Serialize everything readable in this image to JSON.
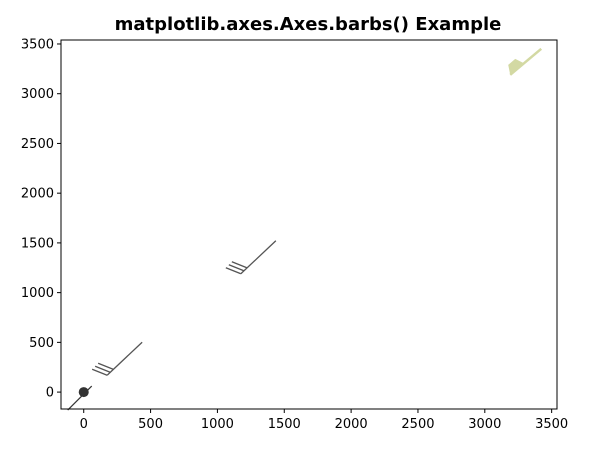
{
  "chart_data": {
    "type": "barbs",
    "title": "matplotlib.axes.Axes.barbs() Example",
    "xlabel": "",
    "ylabel": "",
    "xlim": [
      -170,
      3540
    ],
    "ylim": [
      -170,
      3540
    ],
    "xticks": [
      0,
      500,
      1000,
      1500,
      2000,
      2500,
      3000,
      3500
    ],
    "yticks": [
      0,
      500,
      1000,
      1500,
      2000,
      2500,
      3000,
      3500
    ],
    "grid": false,
    "barbs": [
      {
        "x": 0,
        "y": 0,
        "style": "calm-circle",
        "color": "#333333"
      },
      {
        "x": 250,
        "y": 230,
        "style": "three-full-barbs",
        "color": "#555555"
      },
      {
        "x": 1250,
        "y": 1250,
        "style": "three-full-barbs",
        "color": "#555555"
      },
      {
        "x": 3250,
        "y": 3250,
        "style": "pennant",
        "color": "#d3d9a3"
      }
    ]
  }
}
